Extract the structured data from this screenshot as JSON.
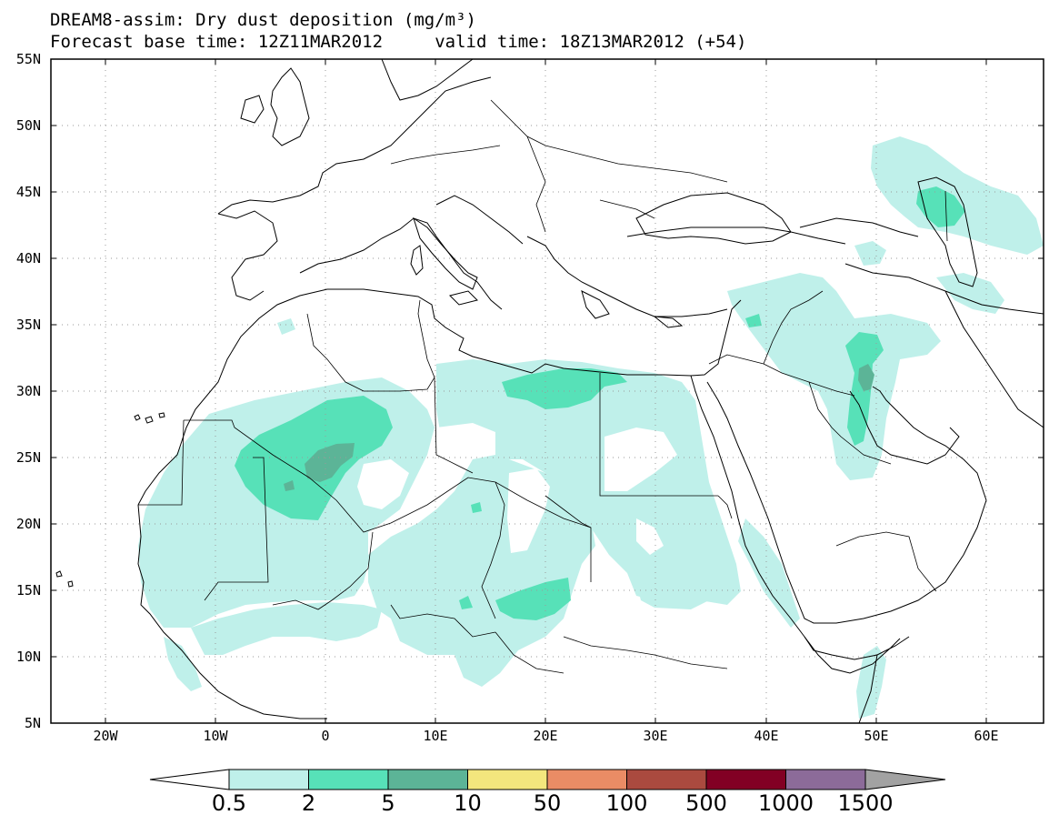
{
  "title": {
    "line1": "DREAM8-assim: Dry dust deposition (mg/m³)",
    "line2": "Forecast base time: 12Z11MAR2012     valid time: 18Z13MAR2012 (+54)"
  },
  "map": {
    "lon_ticks": [
      "20W",
      "10W",
      "0",
      "10E",
      "20E",
      "30E",
      "40E",
      "50E",
      "60E"
    ],
    "lat_ticks": [
      "55N",
      "50N",
      "45N",
      "40N",
      "35N",
      "30N",
      "25N",
      "20N",
      "15N",
      "10N",
      "5N"
    ],
    "gridlines": "dotted"
  },
  "colorbar": {
    "labels": [
      "0.5",
      "2",
      "5",
      "10",
      "50",
      "100",
      "500",
      "1000",
      "1500"
    ],
    "colors": [
      "#bff0ea",
      "#57e1b8",
      "#5cb497",
      "#f3e67d",
      "#ea8c65",
      "#aa4a3f",
      "#820024",
      "#8c6b99"
    ],
    "under_color": "#ffffff",
    "over_color": "#a2a2a2"
  }
}
